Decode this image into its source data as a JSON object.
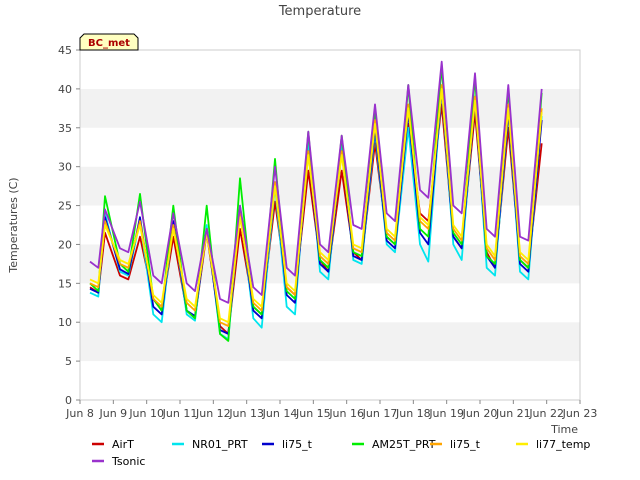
{
  "chart_data": {
    "type": "line",
    "title": "Temperature",
    "xlabel": "Time",
    "ylabel": "Temperatures (C)",
    "ylim": [
      0,
      45
    ],
    "xlim": [
      "2025-06-08",
      "2025-06-23"
    ],
    "yticks": [
      0,
      5,
      10,
      15,
      20,
      25,
      30,
      35,
      40,
      45
    ],
    "xtick_labels": [
      "Jun 8",
      "Jun 9",
      "Jun 10",
      "Jun 11",
      "Jun 12",
      "Jun 13",
      "Jun 14",
      "Jun 15",
      "Jun 16",
      "Jun 17",
      "Jun 18",
      "Jun 19",
      "Jun 20",
      "Jun 21",
      "Jun 22",
      "Jun 23"
    ],
    "grid": "horizontal bands",
    "annotation": "BC_met",
    "legend_position": "bottom",
    "series": [
      {
        "name": "AirT",
        "color": "#cc0000",
        "x": [
          8.3,
          8.55,
          8.75,
          9.2,
          9.45,
          9.8,
          10.2,
          10.45,
          10.8,
          11.2,
          11.45,
          11.8,
          12.2,
          12.45,
          12.8,
          13.2,
          13.45,
          13.85,
          14.2,
          14.45,
          14.85,
          15.2,
          15.45,
          15.85,
          16.2,
          16.45,
          16.85,
          17.2,
          17.45,
          17.85,
          18.2,
          18.45,
          18.85,
          19.2,
          19.45,
          19.85,
          20.2,
          20.45,
          20.85,
          21.2,
          21.45,
          21.85
        ],
        "y": [
          14.5,
          13.8,
          21.5,
          16.0,
          15.5,
          21.0,
          13.0,
          11.5,
          21.0,
          11.5,
          10.5,
          21.5,
          9.5,
          8.5,
          22.0,
          12.0,
          11.0,
          25.5,
          14.5,
          13.5,
          29.5,
          18.0,
          16.5,
          29.5,
          19.0,
          18.0,
          33.0,
          21.0,
          20.0,
          35.5,
          24.0,
          23.0,
          38.0,
          21.0,
          19.5,
          37.0,
          19.0,
          17.0,
          35.0,
          18.0,
          17.0,
          33.0
        ]
      },
      {
        "name": "NR01_PRT",
        "color": "#00e5ee",
        "x": [
          8.3,
          8.55,
          8.75,
          9.2,
          9.45,
          9.8,
          10.2,
          10.45,
          10.8,
          11.2,
          11.45,
          11.8,
          12.2,
          12.45,
          12.8,
          13.2,
          13.45,
          13.85,
          14.2,
          14.45,
          14.85,
          15.2,
          15.45,
          15.85,
          16.2,
          16.45,
          16.85,
          17.2,
          17.45,
          17.85,
          18.2,
          18.45,
          18.85,
          19.2,
          19.45,
          19.85,
          20.2,
          20.45,
          20.85,
          21.2,
          21.45,
          21.85
        ],
        "y": [
          13.8,
          13.3,
          24.0,
          16.5,
          16.0,
          23.0,
          11.0,
          10.0,
          23.0,
          11.0,
          10.2,
          22.5,
          8.5,
          7.8,
          25.0,
          10.5,
          9.3,
          27.5,
          12.0,
          11.0,
          33.5,
          16.5,
          15.5,
          33.0,
          18.0,
          17.5,
          34.5,
          20.0,
          19.0,
          35.0,
          20.0,
          17.8,
          40.0,
          20.0,
          18.0,
          39.0,
          17.0,
          16.0,
          37.0,
          16.5,
          15.5,
          36.5
        ]
      },
      {
        "name": "li75_t",
        "color": "#0000cc",
        "x": [
          8.3,
          8.55,
          8.75,
          9.2,
          9.45,
          9.8,
          10.2,
          10.45,
          10.8,
          11.2,
          11.45,
          11.8,
          12.2,
          12.45,
          12.8,
          13.2,
          13.45,
          13.85,
          14.2,
          14.45,
          14.85,
          15.2,
          15.45,
          15.85,
          16.2,
          16.45,
          16.85,
          17.2,
          17.45,
          17.85,
          18.2,
          18.45,
          18.85,
          19.2,
          19.45,
          19.85,
          20.2,
          20.45,
          20.85,
          21.2,
          21.45,
          21.85
        ],
        "y": [
          14.3,
          13.8,
          23.5,
          16.8,
          16.2,
          23.5,
          12.0,
          11.0,
          23.0,
          11.5,
          10.8,
          22.0,
          9.0,
          8.5,
          24.5,
          11.5,
          10.5,
          28.0,
          13.5,
          12.5,
          32.0,
          17.5,
          16.5,
          32.0,
          18.5,
          18.0,
          35.0,
          20.5,
          19.5,
          37.0,
          21.5,
          20.0,
          40.0,
          21.0,
          19.5,
          38.5,
          18.5,
          17.0,
          37.0,
          17.5,
          16.5,
          36.0
        ]
      },
      {
        "name": "AM25T_PRT",
        "color": "#00ee00",
        "x": [
          8.3,
          8.55,
          8.75,
          9.2,
          9.45,
          9.8,
          10.2,
          10.45,
          10.8,
          11.2,
          11.45,
          11.8,
          12.2,
          12.45,
          12.8,
          13.2,
          13.45,
          13.85,
          14.2,
          14.45,
          14.85,
          15.2,
          15.45,
          15.85,
          16.2,
          16.45,
          16.85,
          17.2,
          17.45,
          17.85,
          18.2,
          18.45,
          18.85,
          19.2,
          19.45,
          19.85,
          20.2,
          20.45,
          20.85,
          21.2,
          21.45,
          21.85
        ],
        "y": [
          15.0,
          14.0,
          26.2,
          17.5,
          16.5,
          26.5,
          13.0,
          11.5,
          25.0,
          11.5,
          10.5,
          25.0,
          8.5,
          7.6,
          28.5,
          12.0,
          11.0,
          31.0,
          14.0,
          13.0,
          34.5,
          18.0,
          17.0,
          34.0,
          19.0,
          18.5,
          37.5,
          21.0,
          20.0,
          40.5,
          22.0,
          21.0,
          43.0,
          21.5,
          20.0,
          41.5,
          18.5,
          17.5,
          40.0,
          18.0,
          17.0,
          39.5
        ]
      },
      {
        "name": "li75_t",
        "color": "#ffa500",
        "x": [
          8.3,
          8.55,
          8.75,
          9.2,
          9.45,
          9.8,
          10.2,
          10.45,
          10.8,
          11.2,
          11.45,
          11.8,
          12.2,
          12.45,
          12.8,
          13.2,
          13.45,
          13.85,
          14.2,
          14.45,
          14.85,
          15.2,
          15.45,
          15.85,
          16.2,
          16.45,
          16.85,
          17.2,
          17.45,
          17.85,
          18.2,
          18.45,
          18.85,
          19.2,
          19.45,
          19.85,
          20.2,
          20.45,
          20.85,
          21.2,
          21.45,
          21.85
        ],
        "y": [
          15.0,
          14.5,
          23.0,
          17.5,
          17.0,
          23.0,
          13.0,
          12.0,
          22.5,
          12.5,
          11.5,
          22.0,
          10.0,
          9.5,
          24.0,
          12.5,
          11.5,
          28.0,
          14.5,
          13.5,
          32.0,
          18.5,
          17.5,
          32.0,
          19.5,
          19.0,
          36.0,
          21.5,
          20.5,
          38.0,
          23.0,
          22.0,
          40.5,
          22.0,
          20.5,
          39.0,
          19.5,
          18.0,
          38.0,
          18.5,
          17.5,
          37.5
        ]
      },
      {
        "name": "li77_temp",
        "color": "#ffee00",
        "x": [
          8.3,
          8.55,
          8.75,
          9.2,
          9.45,
          9.8,
          10.2,
          10.45,
          10.8,
          11.2,
          11.45,
          11.8,
          12.2,
          12.45,
          12.8,
          13.2,
          13.45,
          13.85,
          14.2,
          14.45,
          14.85,
          15.2,
          15.45,
          15.85,
          16.2,
          16.45,
          16.85,
          17.2,
          17.45,
          17.85,
          18.2,
          18.45,
          18.85,
          19.2,
          19.45,
          19.85,
          20.2,
          20.45,
          20.85,
          21.2,
          21.45,
          21.85
        ],
        "y": [
          15.5,
          15.0,
          22.5,
          18.0,
          17.5,
          22.5,
          13.5,
          12.5,
          22.0,
          13.0,
          12.0,
          21.5,
          10.5,
          10.0,
          23.5,
          13.0,
          12.0,
          27.5,
          15.0,
          14.0,
          31.5,
          19.0,
          18.0,
          31.5,
          20.0,
          19.5,
          35.5,
          22.0,
          21.0,
          37.5,
          23.5,
          22.5,
          40.0,
          22.5,
          21.0,
          38.5,
          20.0,
          18.5,
          37.5,
          19.0,
          18.0,
          37.0
        ]
      },
      {
        "name": "Tsonic",
        "color": "#9932cc",
        "x": [
          8.3,
          8.55,
          8.75,
          9.2,
          9.45,
          9.8,
          10.2,
          10.45,
          10.8,
          11.2,
          11.45,
          11.8,
          12.2,
          12.45,
          12.8,
          13.2,
          13.45,
          13.85,
          14.2,
          14.45,
          14.85,
          15.2,
          15.45,
          15.85,
          16.2,
          16.45,
          16.85,
          17.2,
          17.45,
          17.85,
          18.2,
          18.45,
          18.85,
          19.2,
          19.45,
          19.85,
          20.2,
          20.45,
          20.85,
          21.2,
          21.45,
          21.85
        ],
        "y": [
          17.8,
          17.0,
          24.5,
          19.5,
          19.0,
          25.5,
          16.0,
          15.0,
          24.0,
          15.0,
          14.0,
          22.0,
          13.0,
          12.5,
          25.0,
          14.5,
          13.5,
          30.0,
          17.0,
          16.0,
          34.5,
          20.0,
          19.0,
          34.0,
          22.5,
          22.0,
          38.0,
          24.0,
          23.0,
          40.5,
          27.0,
          26.0,
          43.5,
          25.0,
          24.0,
          42.0,
          22.0,
          21.0,
          40.5,
          21.0,
          20.5,
          40.0
        ]
      }
    ]
  }
}
